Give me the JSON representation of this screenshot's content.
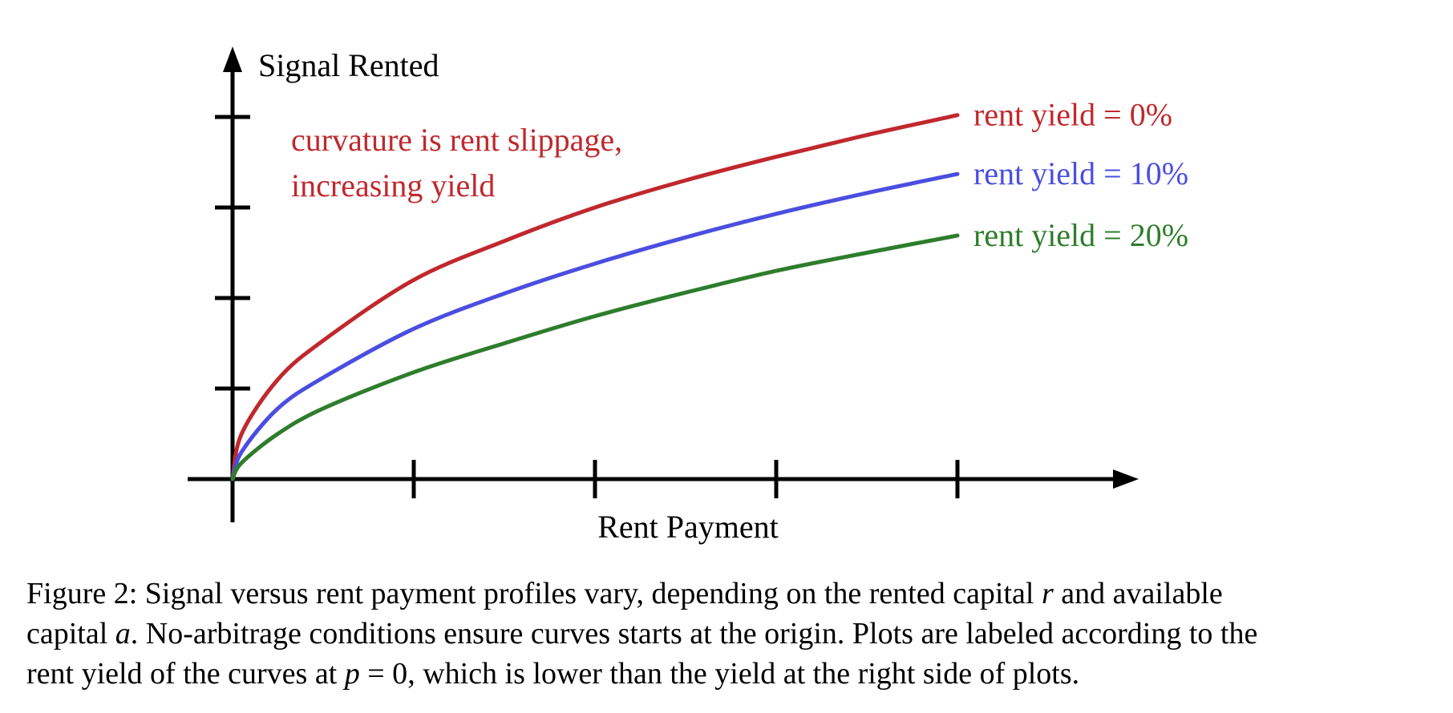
{
  "chart_data": {
    "type": "line",
    "title": "",
    "xlabel": "Rent Payment",
    "ylabel": "Signal Rented",
    "xlim": [
      0,
      5
    ],
    "ylim": [
      0,
      4.6
    ],
    "xticks": [
      1,
      2,
      3,
      4
    ],
    "yticks": [
      1,
      2,
      3,
      4
    ],
    "x_tick_labels": [],
    "y_tick_labels": [],
    "grid": false,
    "legend": "series labels at right end of each curve",
    "annotation": {
      "lines": [
        "curvature is rent slippage,",
        "increasing yield"
      ],
      "color": "#c0282d"
    },
    "series": [
      {
        "name": "rent yield = 0%",
        "color": "#c0282d",
        "x": [
          0,
          0.05,
          0.25,
          0.5,
          1,
          1.5,
          2,
          2.5,
          3,
          3.5,
          4
        ],
        "y": [
          0,
          0.5,
          1.1,
          1.53,
          2.2,
          2.63,
          3.0,
          3.3,
          3.56,
          3.8,
          4.02
        ]
      },
      {
        "name": "rent yield = 10%",
        "color": "#4a4ee0",
        "x": [
          0,
          0.05,
          0.25,
          0.5,
          1,
          1.5,
          2,
          2.5,
          3,
          3.5,
          4
        ],
        "y": [
          0,
          0.3,
          0.78,
          1.12,
          1.66,
          2.05,
          2.38,
          2.67,
          2.93,
          3.16,
          3.37
        ]
      },
      {
        "name": "rent yield = 20%",
        "color": "#2e7d2c",
        "x": [
          0,
          0.05,
          0.25,
          0.5,
          1,
          1.5,
          2,
          2.5,
          3,
          3.5,
          4
        ],
        "y": [
          0,
          0.18,
          0.5,
          0.78,
          1.18,
          1.5,
          1.8,
          2.06,
          2.3,
          2.5,
          2.69
        ]
      }
    ]
  },
  "caption": {
    "line1_a": "Figure 2: Signal versus rent payment profiles vary, depending on the rented capital ",
    "line1_var": "r",
    "line1_b": " and available",
    "line2_a": "capital ",
    "line2_var": "a",
    "line2_b": ". No-arbitrage conditions ensure curves starts at the origin. Plots are labeled according to the",
    "line3_a": "rent yield of the curves at ",
    "line3_var": "p",
    "line3_eq": " = 0",
    "line3_b": ", which is lower than the yield at the right side of plots."
  }
}
